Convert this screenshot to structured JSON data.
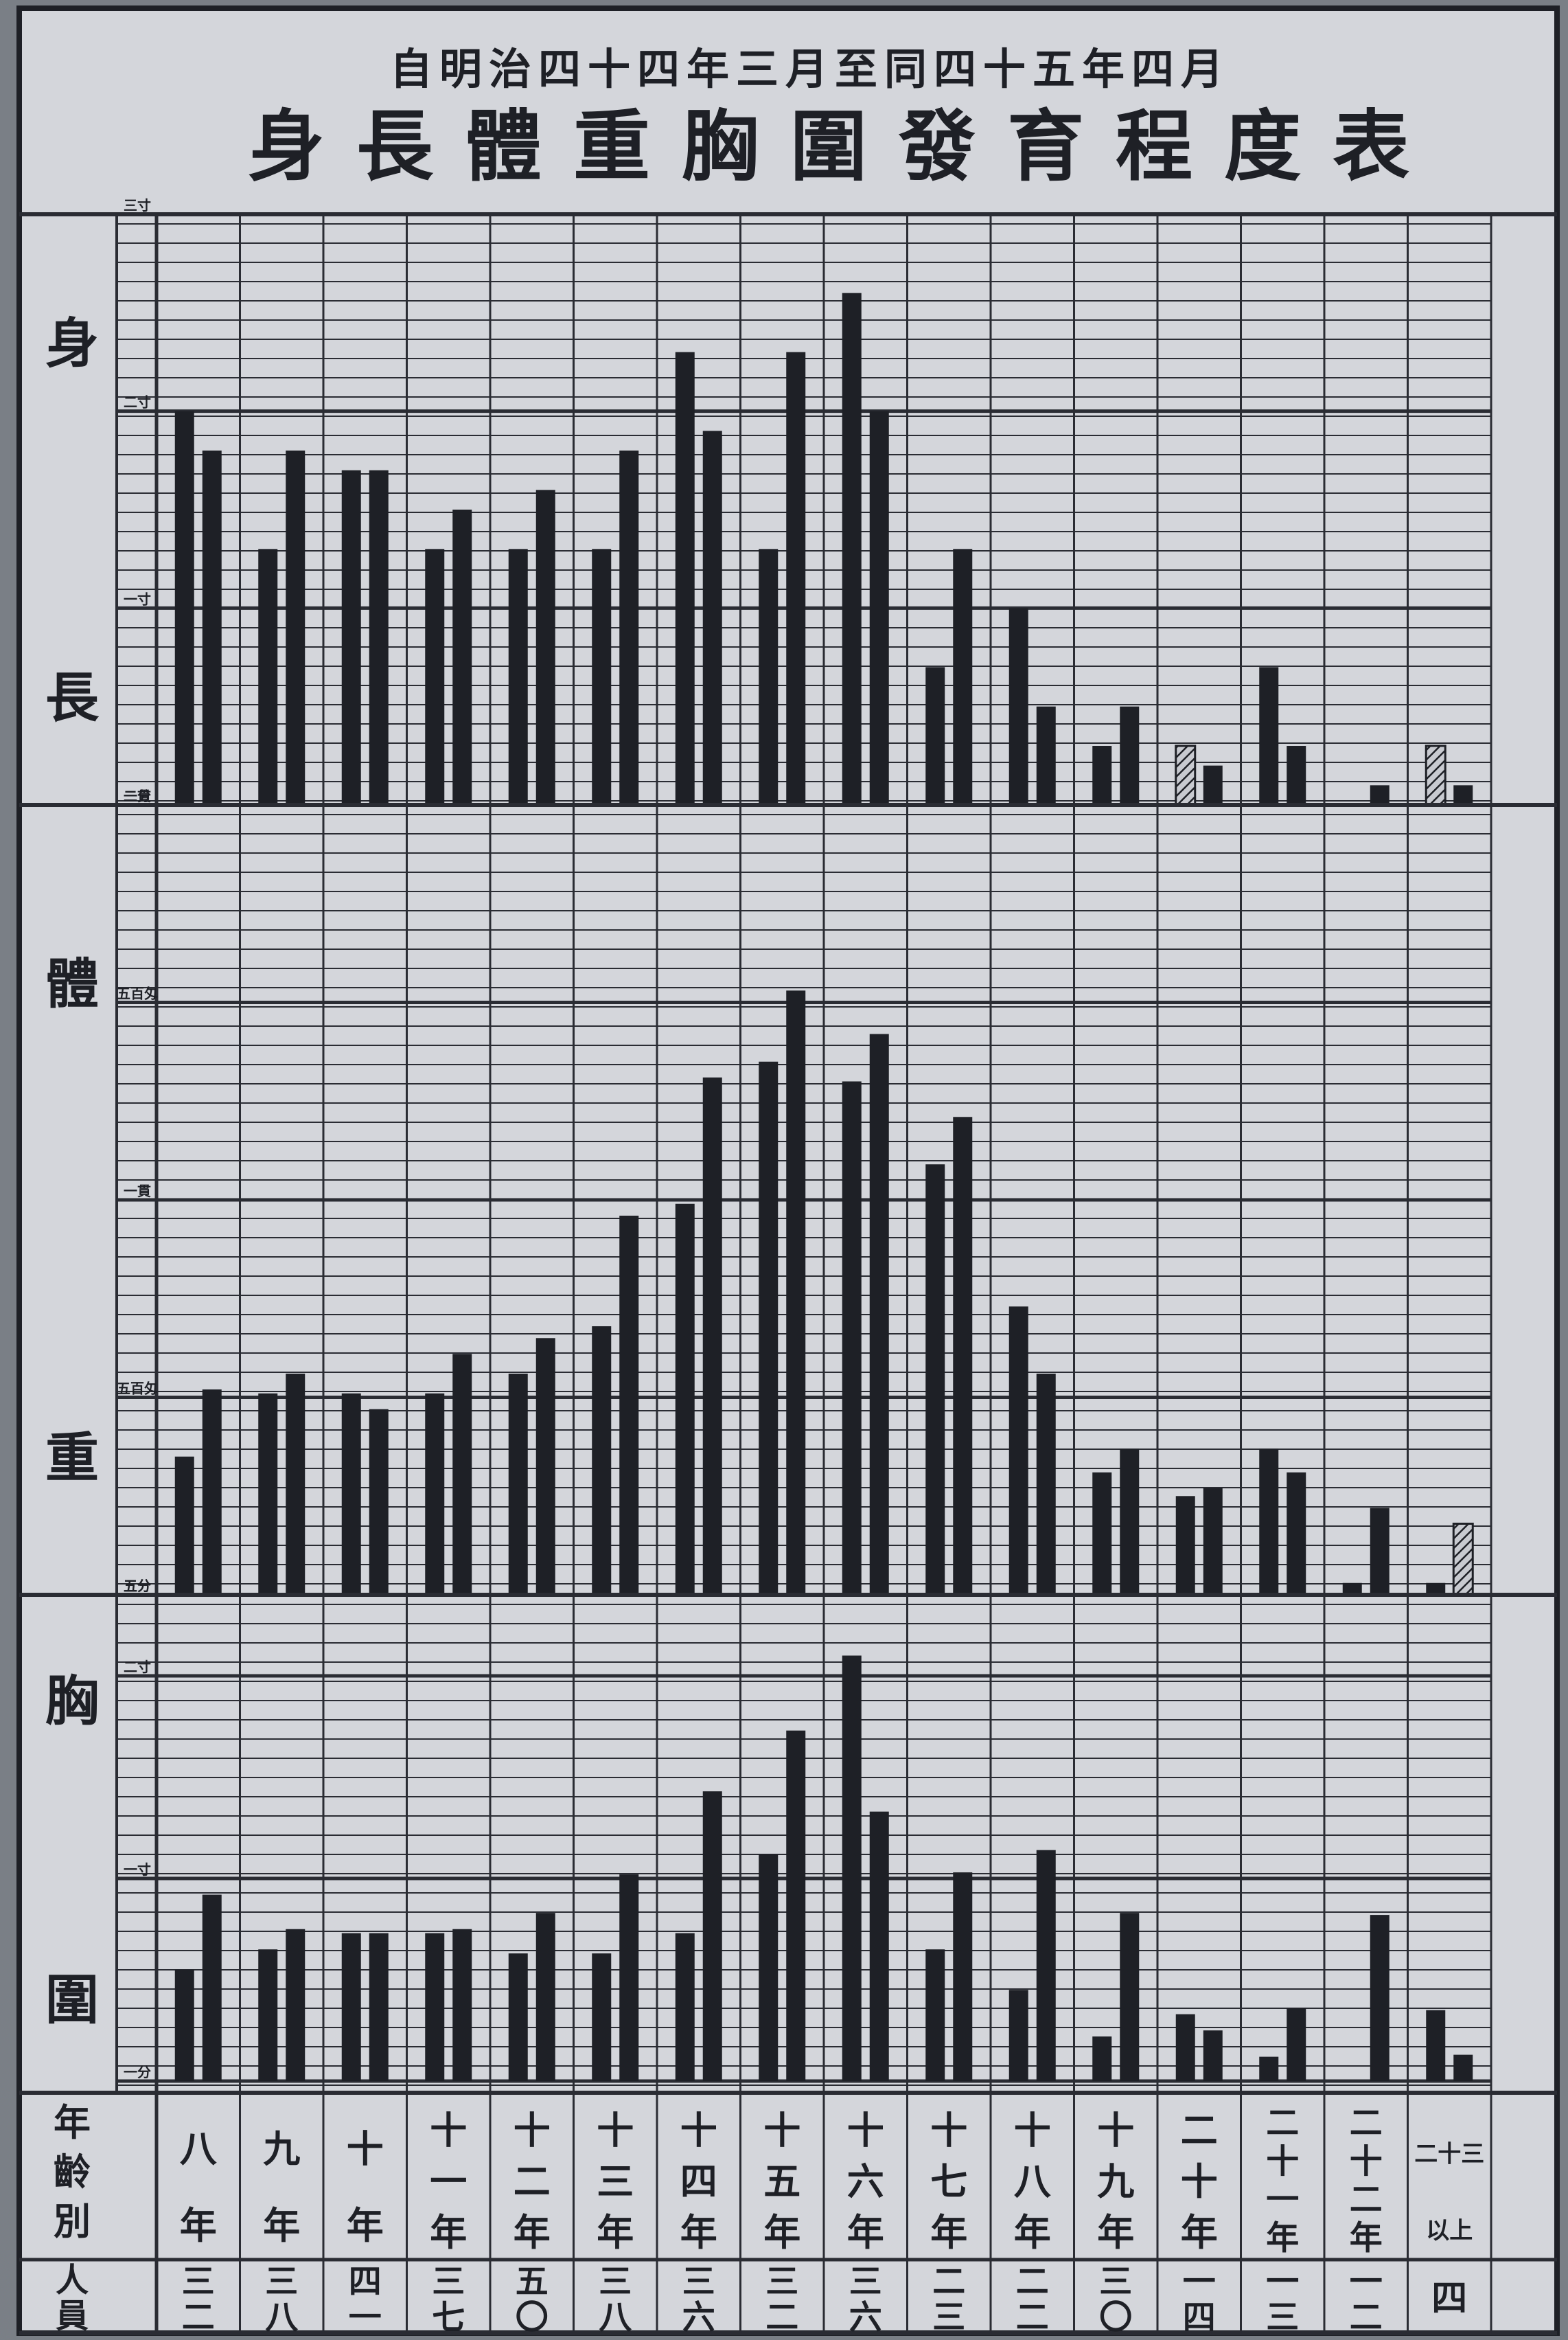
{
  "header": {
    "subtitle": "自明治四十四年三月至同四十五年四月",
    "title": "身長體重胸圍發育程度表"
  },
  "colors": {
    "paper": "#d4d6db",
    "ink": "#1e2026",
    "grid": "#2a2c33",
    "background": "#7a7f86"
  },
  "chart_data": {
    "type": "bar",
    "title": "身長體重胸圍發育程度表",
    "subtitle": "自明治四十四年三月至同四十五年四月",
    "categories": [
      "八年",
      "九年",
      "十年",
      "十一年",
      "十二年",
      "十三年",
      "十四年",
      "十五年",
      "十六年",
      "十七年",
      "十八年",
      "十九年",
      "二十年",
      "二十一年",
      "二十二年",
      "二十三年以上"
    ],
    "category_cells": [
      [
        "八",
        "年"
      ],
      [
        "九",
        "年"
      ],
      [
        "十",
        "年"
      ],
      [
        "十",
        "一",
        "年"
      ],
      [
        "十",
        "二",
        "年"
      ],
      [
        "十",
        "三",
        "年"
      ],
      [
        "十",
        "四",
        "年"
      ],
      [
        "十",
        "五",
        "年"
      ],
      [
        "十",
        "六",
        "年"
      ],
      [
        "十",
        "七",
        "年"
      ],
      [
        "十",
        "八",
        "年"
      ],
      [
        "十",
        "九",
        "年"
      ],
      [
        "二",
        "十",
        "年"
      ],
      [
        "二",
        "十",
        "一",
        "年"
      ],
      [
        "二",
        "十",
        "二",
        "年"
      ],
      [
        "二十三",
        "以上"
      ]
    ],
    "row_labels": {
      "age": [
        "年",
        "齡",
        "別"
      ],
      "count": [
        "人",
        "員"
      ]
    },
    "counts": [
      [
        "三",
        "二"
      ],
      [
        "三",
        "八"
      ],
      [
        "四",
        "一"
      ],
      [
        "三",
        "七"
      ],
      [
        "五",
        "〇"
      ],
      [
        "三",
        "八"
      ],
      [
        "三",
        "六"
      ],
      [
        "三",
        "二"
      ],
      [
        "三",
        "六"
      ],
      [
        "二",
        "三"
      ],
      [
        "二",
        "二"
      ],
      [
        "三",
        "〇"
      ],
      [
        "一",
        "四"
      ],
      [
        "一",
        "三"
      ],
      [
        "一",
        "二"
      ],
      [
        "四"
      ]
    ],
    "panels": [
      {
        "name": "身長",
        "label_chars": [
          "身",
          "長"
        ],
        "ylim": [
          0,
          3
        ],
        "ticks": [
          {
            "value": 0,
            "label": "一分"
          },
          {
            "value": 1,
            "label": "一寸"
          },
          {
            "value": 2,
            "label": "二寸"
          },
          {
            "value": 3,
            "label": "三寸"
          }
        ],
        "series": [
          {
            "values": [
              2.0,
              1.3,
              1.7,
              1.3,
              1.3,
              1.3,
              2.3,
              1.3,
              2.6,
              0.7,
              1.0,
              0.3,
              0.3,
              0.7,
              0.0,
              0.3
            ],
            "hatched": [
              false,
              false,
              false,
              false,
              false,
              false,
              false,
              false,
              false,
              false,
              false,
              false,
              true,
              false,
              false,
              true
            ]
          },
          {
            "values": [
              1.8,
              1.8,
              1.7,
              1.5,
              1.6,
              1.8,
              1.9,
              2.3,
              2.0,
              1.3,
              0.5,
              0.5,
              0.2,
              0.3,
              0.1,
              0.1
            ],
            "hatched": [
              false,
              false,
              false,
              false,
              false,
              false,
              false,
              false,
              false,
              false,
              false,
              false,
              false,
              false,
              false,
              false
            ]
          }
        ]
      },
      {
        "name": "體重",
        "label_chars": [
          "體",
          "重"
        ],
        "ylim": [
          0,
          2
        ],
        "ticks": [
          {
            "value": 0,
            "label": "五分"
          },
          {
            "value": 0.5,
            "label": "五百匁"
          },
          {
            "value": 1.0,
            "label": "一貫"
          },
          {
            "value": 1.5,
            "label": "五百匁"
          },
          {
            "value": 2.0,
            "label": "二貫"
          }
        ],
        "series": [
          {
            "values": [
              0.35,
              0.51,
              0.51,
              0.51,
              0.56,
              0.68,
              0.99,
              1.35,
              1.3,
              1.09,
              0.73,
              0.31,
              0.25,
              0.37,
              0.03,
              0.03
            ],
            "hatched": [
              false,
              false,
              false,
              false,
              false,
              false,
              false,
              false,
              false,
              false,
              false,
              false,
              false,
              false,
              false,
              false
            ]
          },
          {
            "values": [
              0.52,
              0.56,
              0.47,
              0.61,
              0.65,
              0.96,
              1.31,
              1.53,
              1.42,
              1.21,
              0.56,
              0.37,
              0.27,
              0.31,
              0.22,
              0.18
            ],
            "hatched": [
              false,
              false,
              false,
              false,
              false,
              false,
              false,
              false,
              false,
              false,
              false,
              false,
              false,
              false,
              false,
              true
            ]
          }
        ]
      },
      {
        "name": "胸圍",
        "label_chars": [
          "胸",
          "圍"
        ],
        "ylim": [
          0,
          2.4
        ],
        "ticks": [
          {
            "value": 0,
            "label": "一分"
          },
          {
            "value": 1,
            "label": "一寸"
          },
          {
            "value": 2,
            "label": "二寸"
          },
          {
            "value": 2.4,
            "label": "五分"
          }
        ],
        "series": [
          {
            "values": [
              0.55,
              0.65,
              0.73,
              0.73,
              0.63,
              0.63,
              0.73,
              1.12,
              2.1,
              0.65,
              0.45,
              0.22,
              0.33,
              0.12,
              0.0,
              0.35
            ],
            "hatched": [
              false,
              false,
              false,
              false,
              false,
              false,
              false,
              false,
              false,
              false,
              false,
              false,
              false,
              false,
              false,
              false
            ]
          },
          {
            "values": [
              0.92,
              0.75,
              0.73,
              0.75,
              0.83,
              1.02,
              1.43,
              1.73,
              1.33,
              1.03,
              1.14,
              0.83,
              0.25,
              0.36,
              0.82,
              0.13
            ],
            "hatched": [
              false,
              false,
              false,
              false,
              false,
              false,
              false,
              false,
              false,
              false,
              false,
              false,
              false,
              false,
              false,
              false
            ]
          }
        ]
      }
    ]
  }
}
